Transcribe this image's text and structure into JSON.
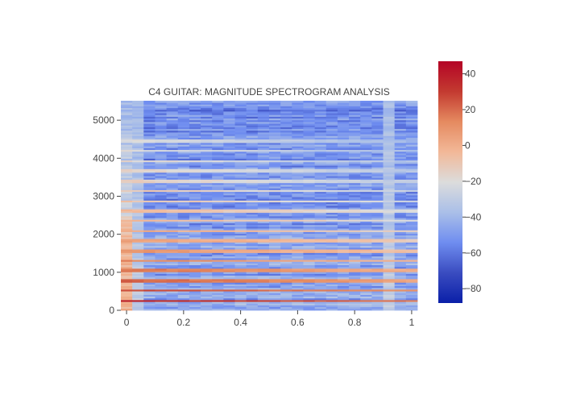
{
  "chart_data": {
    "type": "heatmap",
    "title": "C4 GUITAR: MAGNITUDE SPECTROGRAM ANALYSIS",
    "xlabel": "",
    "ylabel": "",
    "xlim": [
      -0.02,
      1.02
    ],
    "ylim": [
      0,
      5512
    ],
    "x_ticks": [
      0,
      0.2,
      0.4,
      0.6,
      0.8,
      1
    ],
    "x_tick_labels": [
      "0",
      "0.2",
      "0.4",
      "0.6",
      "0.8",
      "1"
    ],
    "y_ticks": [
      0,
      1000,
      2000,
      3000,
      4000,
      5000
    ],
    "y_tick_labels": [
      "0",
      "1000",
      "2000",
      "3000",
      "4000",
      "5000"
    ],
    "colorbar": {
      "min": -88,
      "max": 47,
      "ticks": [
        40,
        20,
        0,
        -20,
        -40,
        -60,
        -80
      ],
      "tick_labels": [
        "40",
        "20",
        "0",
        "−20",
        "−40",
        "−60",
        "−80"
      ],
      "colorscale": [
        "#0a1fa8",
        "#3a4cc0",
        "#6f8df0",
        "#aabfe8",
        "#dcdcdc",
        "#f2b898",
        "#e58a60",
        "#c33a30",
        "#b40426"
      ]
    },
    "time_frames": 26,
    "time_start": -0.02,
    "time_step": 0.04,
    "freq_bins": 120,
    "freq_max": 5512,
    "fundamental_hz": 262,
    "harmonic_levels_db": [
      35,
      28,
      22,
      18,
      14,
      10,
      6,
      2,
      -2,
      -5,
      -8,
      -10,
      -13,
      -15,
      -17,
      -19,
      -21
    ]
  }
}
